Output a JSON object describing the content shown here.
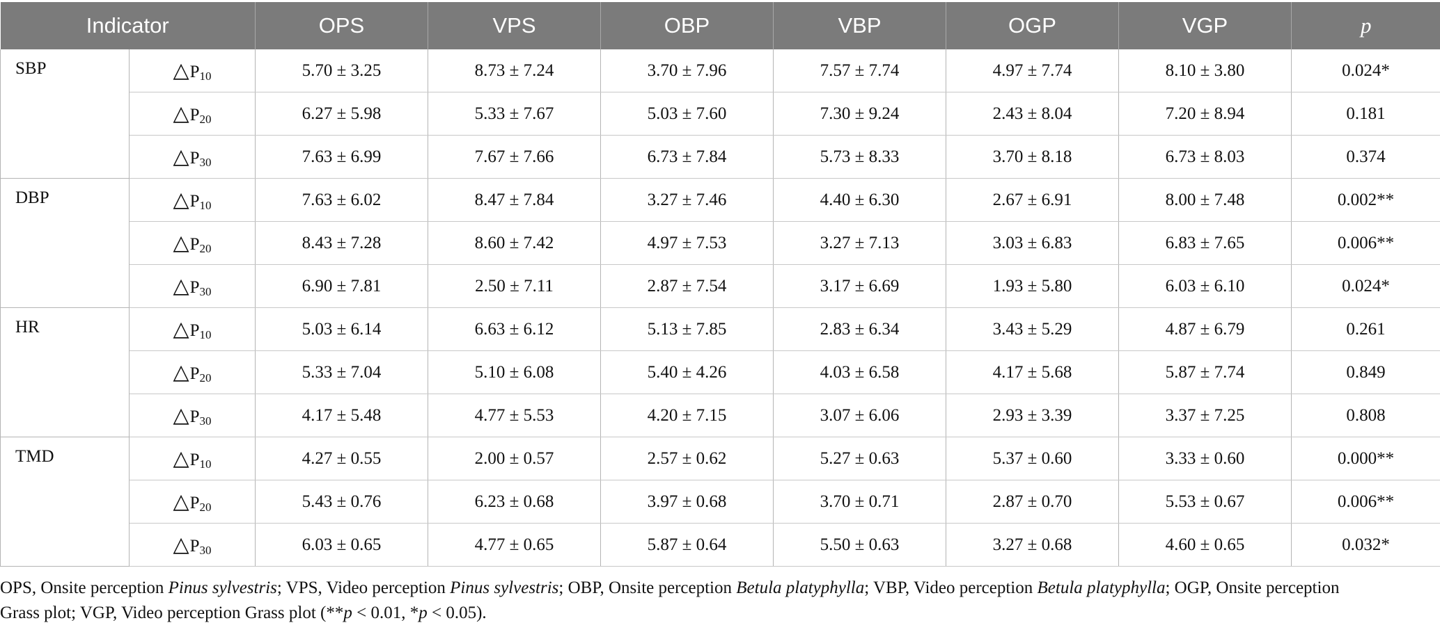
{
  "table": {
    "headers": {
      "indicator": "Indicator",
      "cols": [
        "OPS",
        "VPS",
        "OBP",
        "VBP",
        "OGP",
        "VGP"
      ],
      "p": "p"
    },
    "groups": [
      {
        "name": "SBP",
        "rows": [
          {
            "symbol": "△",
            "label": "P",
            "sub": "10",
            "values": [
              "5.70 ± 3.25",
              "8.73 ± 7.24",
              "3.70 ± 7.96",
              "7.57 ± 7.74",
              "4.97 ± 7.74",
              "8.10 ± 3.80"
            ],
            "p": "0.024*"
          },
          {
            "symbol": "△",
            "label": "P",
            "sub": "20",
            "values": [
              "6.27 ± 5.98",
              "5.33 ± 7.67",
              "5.03 ± 7.60",
              "7.30 ± 9.24",
              "2.43 ± 8.04",
              "7.20 ± 8.94"
            ],
            "p": "0.181"
          },
          {
            "symbol": "△",
            "label": "P",
            "sub": "30",
            "values": [
              "7.63 ± 6.99",
              "7.67 ± 7.66",
              "6.73 ± 7.84",
              "5.73 ± 8.33",
              "3.70 ± 8.18",
              "6.73 ± 8.03"
            ],
            "p": "0.374"
          }
        ]
      },
      {
        "name": "DBP",
        "rows": [
          {
            "symbol": "△",
            "label": "P",
            "sub": "10",
            "values": [
              "7.63 ± 6.02",
              "8.47 ± 7.84",
              "3.27 ± 7.46",
              "4.40 ± 6.30",
              "2.67 ± 6.91",
              "8.00 ± 7.48"
            ],
            "p": "0.002**"
          },
          {
            "symbol": "△",
            "label": "P",
            "sub": "20",
            "values": [
              "8.43 ± 7.28",
              "8.60 ± 7.42",
              "4.97 ± 7.53",
              "3.27 ± 7.13",
              "3.03 ± 6.83",
              "6.83 ± 7.65"
            ],
            "p": "0.006**"
          },
          {
            "symbol": "△",
            "label": "P",
            "sub": "30",
            "values": [
              "6.90 ± 7.81",
              "2.50 ± 7.11",
              "2.87 ± 7.54",
              "3.17 ± 6.69",
              "1.93 ± 5.80",
              "6.03 ± 6.10"
            ],
            "p": "0.024*"
          }
        ]
      },
      {
        "name": "HR",
        "rows": [
          {
            "symbol": "△",
            "label": "P",
            "sub": "10",
            "values": [
              "5.03 ± 6.14",
              "6.63 ± 6.12",
              "5.13 ± 7.85",
              "2.83 ± 6.34",
              "3.43 ± 5.29",
              "4.87 ± 6.79"
            ],
            "p": "0.261"
          },
          {
            "symbol": "△",
            "label": "P",
            "sub": "20",
            "values": [
              "5.33 ± 7.04",
              "5.10 ± 6.08",
              "5.40 ± 4.26",
              "4.03 ± 6.58",
              "4.17 ± 5.68",
              "5.87 ± 7.74"
            ],
            "p": "0.849"
          },
          {
            "symbol": "△",
            "label": "P",
            "sub": "30",
            "values": [
              "4.17 ± 5.48",
              "4.77 ± 5.53",
              "4.20 ± 7.15",
              "3.07 ± 6.06",
              "2.93 ± 3.39",
              "3.37 ± 7.25"
            ],
            "p": "0.808"
          }
        ]
      },
      {
        "name": "TMD",
        "rows": [
          {
            "symbol": "△",
            "label": "P",
            "sub": "10",
            "values": [
              "4.27 ± 0.55",
              "2.00 ± 0.57",
              "2.57 ± 0.62",
              "5.27 ± 0.63",
              "5.37 ± 0.60",
              "3.33 ± 0.60"
            ],
            "p": "0.000**"
          },
          {
            "symbol": "△",
            "label": "P",
            "sub": "20",
            "values": [
              "5.43 ± 0.76",
              "6.23 ± 0.68",
              "3.97 ± 0.68",
              "3.70 ± 0.71",
              "2.87 ± 0.70",
              "5.53 ± 0.67"
            ],
            "p": "0.006**"
          },
          {
            "symbol": "△",
            "label": "P",
            "sub": "30",
            "values": [
              "6.03 ± 0.65",
              "4.77 ± 0.65",
              "5.87 ± 0.64",
              "5.50 ± 0.63",
              "3.27 ± 0.68",
              "4.60 ± 0.65"
            ],
            "p": "0.032*"
          }
        ]
      }
    ]
  },
  "footnote": {
    "line1": [
      {
        "text": "OPS, Onsite perception ",
        "italic": false
      },
      {
        "text": "Pinus sylvestris",
        "italic": true
      },
      {
        "text": "; VPS, Video perception ",
        "italic": false
      },
      {
        "text": "Pinus sylvestris",
        "italic": true
      },
      {
        "text": "; OBP, Onsite perception ",
        "italic": false
      },
      {
        "text": "Betula platyphylla",
        "italic": true
      },
      {
        "text": "; VBP, Video perception ",
        "italic": false
      },
      {
        "text": "Betula platyphylla",
        "italic": true
      },
      {
        "text": "; OGP, Onsite perception",
        "italic": false
      }
    ],
    "line2": [
      {
        "text": "Grass plot; VGP, Video perception Grass plot (**",
        "italic": false
      },
      {
        "text": "p",
        "italic": true
      },
      {
        "text": " < 0.01, *",
        "italic": false
      },
      {
        "text": "p",
        "italic": true
      },
      {
        "text": " < 0.05).",
        "italic": false
      }
    ]
  }
}
